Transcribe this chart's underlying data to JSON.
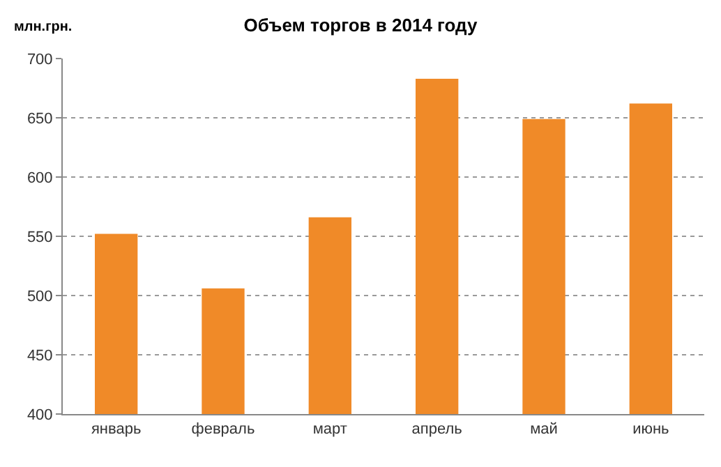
{
  "chart_data": {
    "type": "bar",
    "title": "Объем торгов в 2014 году",
    "ylabel": "млн.грн.",
    "categories": [
      "январь",
      "февраль",
      "март",
      "апрель",
      "май",
      "июнь"
    ],
    "values": [
      552,
      506,
      566,
      683,
      649,
      662
    ],
    "color": "#f08a28",
    "ylim": [
      400,
      700
    ],
    "yticks": [
      400,
      450,
      500,
      550,
      600,
      650,
      700
    ],
    "grid": "y"
  }
}
